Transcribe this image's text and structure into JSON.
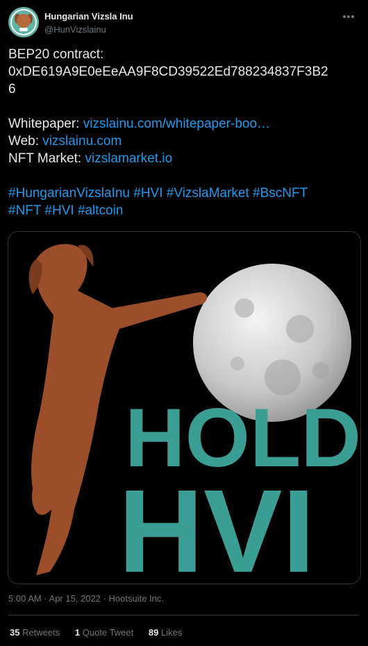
{
  "author": {
    "display_name": "Hungarian Vizsla Inu",
    "handle": "@HunVizslainu"
  },
  "tweet": {
    "contract_label": "BEP20 contract:",
    "contract_line1": "0xDE619A9E0eEeAA9F8CD39522Ed788234837F3B2",
    "contract_line2": "6",
    "whitepaper_label": "Whitepaper: ",
    "whitepaper_link": "vizslainu.com/whitepaper-boo…",
    "web_label": "Web: ",
    "web_link": "vizslainu.com",
    "nft_label": "NFT Market: ",
    "nft_link": "vizslamarket.io",
    "hashtags_line1": "#HungarianVizslaInu #HVI #VizslaMarket #BscNFT",
    "hashtags_line2": "#NFT #HVI #altcoin"
  },
  "image": {
    "line1": "HOLD",
    "line2": "HVI",
    "text_color": "#3a9e94",
    "background": "#000000"
  },
  "meta": {
    "timestamp": "5:00 AM · Apr 15, 2022 · Hootsuite Inc."
  },
  "stats": {
    "retweets_count": "35",
    "retweets_label": "Retweets",
    "quotes_count": "1",
    "quotes_label": "Quote Tweet",
    "likes_count": "89",
    "likes_label": "Likes"
  },
  "colors": {
    "link": "#1d9bf0",
    "secondary_text": "#71767b",
    "primary_text": "#e7e9ea"
  }
}
